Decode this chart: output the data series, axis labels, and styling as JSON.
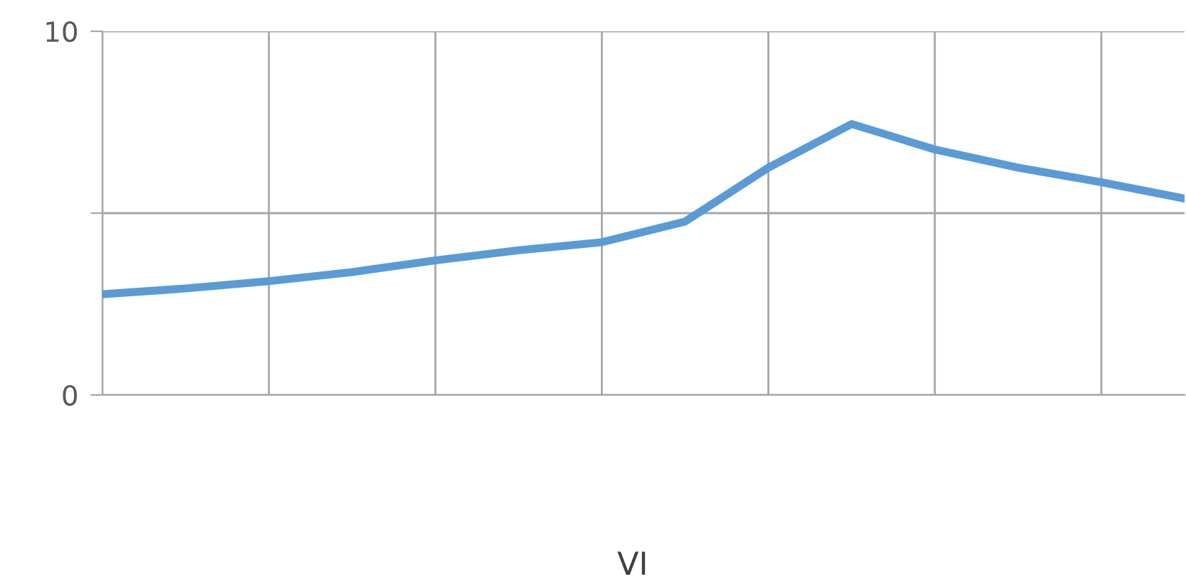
{
  "chart_data": {
    "type": "line",
    "xlabel": "VI",
    "categories": [
      null,
      null,
      null,
      null,
      null,
      null,
      null,
      null,
      null,
      null,
      null,
      null,
      null,
      null
    ],
    "series": [
      {
        "color": "#5b9bd5",
        "values": [
          2.77,
          2.93,
          3.13,
          3.38,
          3.7,
          3.98,
          4.2,
          4.77,
          6.25,
          7.45,
          6.75,
          6.25,
          5.85,
          5.4
        ]
      }
    ],
    "ylim": [
      0,
      10
    ],
    "yticks": [
      0,
      {
        "value": 5,
        "label": null
      },
      10
    ],
    "grid": true,
    "legend": false,
    "marker": "none",
    "line_style": "solid"
  }
}
